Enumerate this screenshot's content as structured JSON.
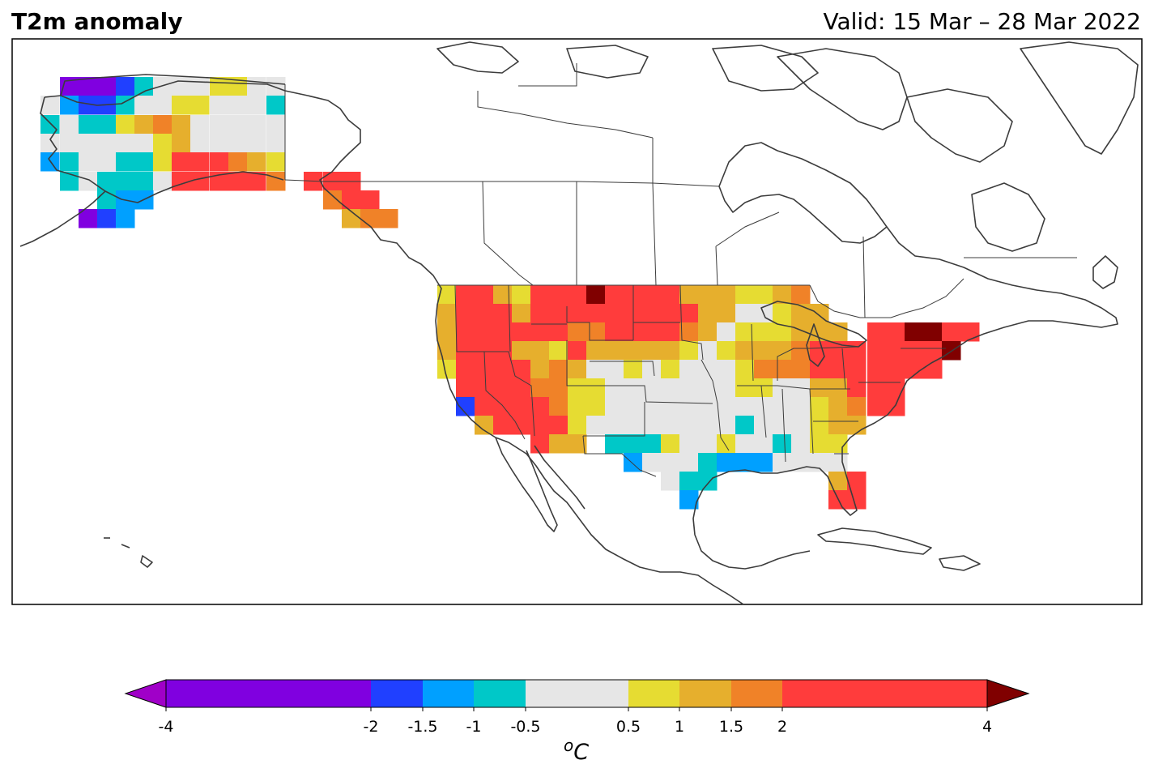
{
  "header": {
    "title": "T2m anomaly",
    "valid": "Valid: 15 Mar – 28 Mar 2022"
  },
  "colorbar": {
    "unit_superscript": "o",
    "unit": "C",
    "ticks": [
      "-4",
      "-2",
      "-1.5",
      "-1",
      "-0.5",
      "0.5",
      "1",
      "1.5",
      "2",
      "4"
    ],
    "bins": [
      {
        "from": -4,
        "to": -2,
        "color": "#8000e0"
      },
      {
        "from": -2,
        "to": -1.5,
        "color": "#2040ff"
      },
      {
        "from": -1.5,
        "to": -1,
        "color": "#00a0ff"
      },
      {
        "from": -1,
        "to": -0.5,
        "color": "#00c8c8"
      },
      {
        "from": -0.5,
        "to": 0.5,
        "color": "#e6e6e6"
      },
      {
        "from": 0.5,
        "to": 1,
        "color": "#e6dc32"
      },
      {
        "from": 1,
        "to": 1.5,
        "color": "#e6af2d"
      },
      {
        "from": 1.5,
        "to": 2,
        "color": "#f08228"
      },
      {
        "from": 2,
        "to": 4,
        "color": "#ff3c3c"
      }
    ],
    "under_color": "#a000c8",
    "over_color": "#800000"
  },
  "map": {
    "region": "North America",
    "coastline_color": "#3c3c3c"
  }
}
